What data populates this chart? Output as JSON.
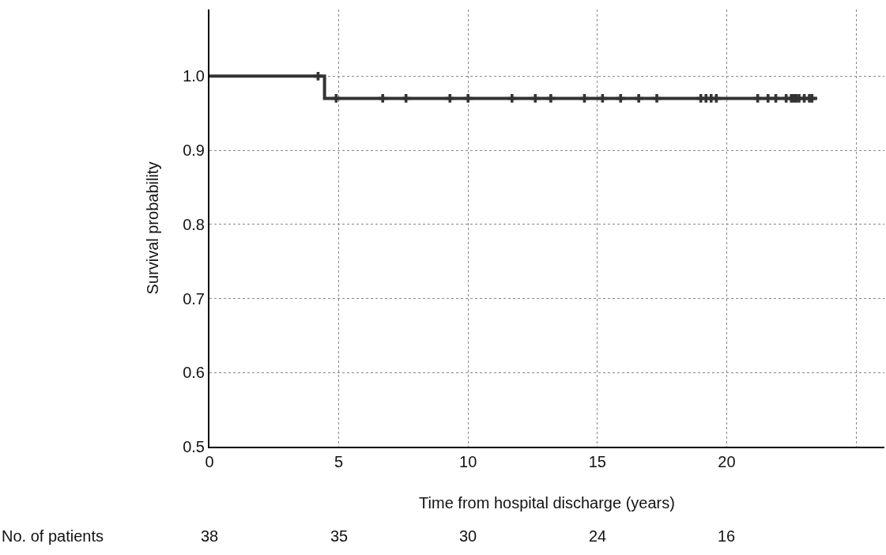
{
  "chart_data": {
    "type": "step",
    "ylabel": "Survival probability",
    "xlabel": "Time from hospital discharge (years)",
    "series": [
      {
        "color": "#333333",
        "x": [
          0,
          4.45,
          23.5
        ],
        "values": [
          1.0,
          0.97,
          0.97
        ],
        "marker": "none"
      },
      {
        "type": "scatter",
        "color": "#333333",
        "marker": "cross",
        "x": [
          4.2,
          4.9,
          6.7,
          7.6,
          9.3,
          10.0,
          11.7,
          12.6,
          13.2,
          14.5,
          15.2,
          15.9,
          16.6,
          17.3,
          19.0,
          19.2,
          19.4,
          19.6,
          21.2,
          21.6,
          21.9,
          22.3,
          22.5,
          22.6,
          22.7,
          22.8,
          23.0,
          23.2,
          23.3
        ],
        "values": [
          1.0,
          0.97,
          0.97,
          0.97,
          0.97,
          0.97,
          0.97,
          0.97,
          0.97,
          0.97,
          0.97,
          0.97,
          0.97,
          0.97,
          0.97,
          0.97,
          0.97,
          0.97,
          0.97,
          0.97,
          0.97,
          0.97,
          0.97,
          0.97,
          0.97,
          0.97,
          0.97,
          0.97,
          0.97
        ]
      }
    ],
    "xlim": [
      0,
      26.1
    ],
    "xticks": [
      0,
      5,
      10,
      15,
      20,
      {
        "value": 25,
        "label": null
      }
    ],
    "ylim": [
      0.5,
      1.09
    ],
    "yticks": [
      0.5,
      0.6,
      0.7,
      0.8,
      0.9,
      {
        "value": 1.0,
        "label": "1.0"
      }
    ],
    "grid": true,
    "annotations": [
      "No. of patients",
      "38",
      "35",
      "30",
      "24",
      "16"
    ]
  }
}
